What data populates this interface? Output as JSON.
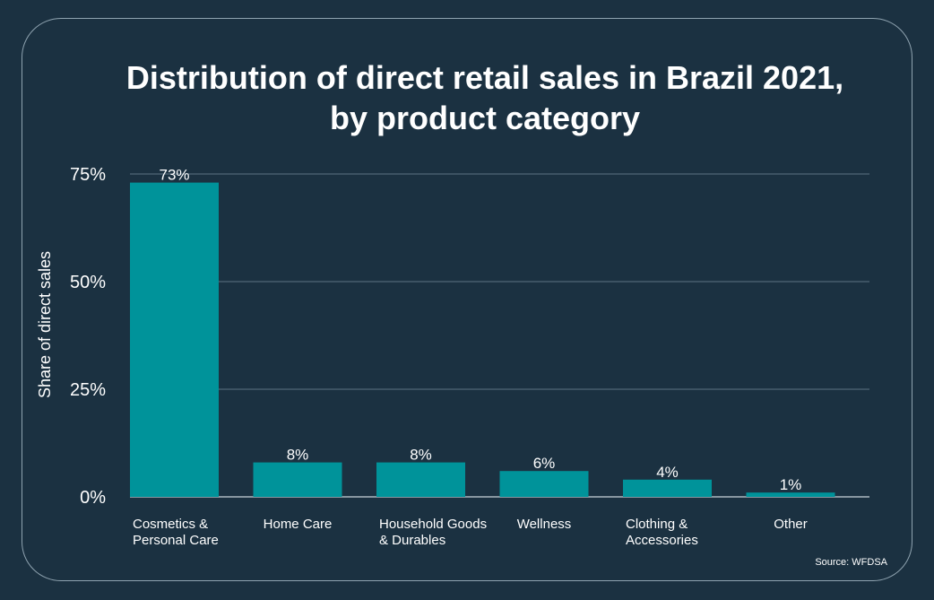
{
  "chart_data": {
    "type": "bar",
    "title_lines": [
      "Distribution of direct retail sales in Brazil 2021,",
      "by product category"
    ],
    "ylabel": "Share of direct sales",
    "xlabel": "",
    "ylim": [
      0,
      75
    ],
    "yticks": [
      0,
      25,
      50,
      75
    ],
    "ytick_labels": [
      "0%",
      "25%",
      "50%",
      "75%"
    ],
    "grid": true,
    "categories": [
      [
        "Cosmetics &",
        "Personal Care"
      ],
      [
        "Home Care"
      ],
      [
        "Household Goods",
        "& Durables"
      ],
      [
        "Wellness"
      ],
      [
        "Clothing &",
        "Accessories"
      ],
      [
        "Other"
      ]
    ],
    "values": [
      73,
      8,
      8,
      6,
      4,
      1
    ],
    "value_labels": [
      "73%",
      "8%",
      "8%",
      "6%",
      "4%",
      "1%"
    ],
    "bar_color": "#00939a",
    "grid_color": "#5d7483"
  },
  "source": "Source: WFDSA"
}
